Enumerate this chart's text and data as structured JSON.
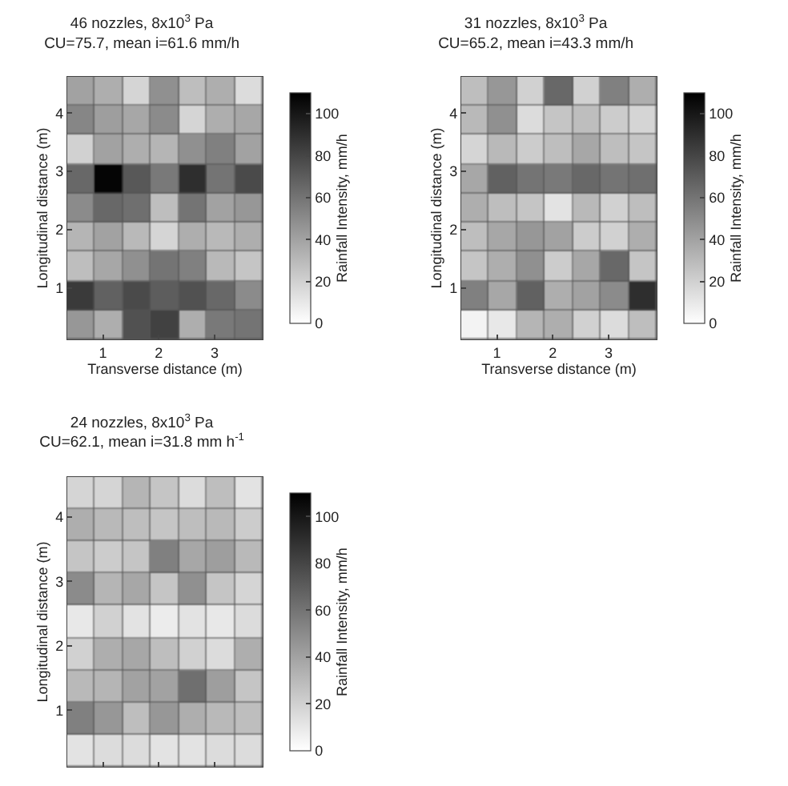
{
  "chart_data": [
    {
      "type": "heatmap",
      "title": "46 nozzles, 8x10$^{3}$ Pa",
      "subtitle": "CU=75.7, mean i=61.6 mm/h",
      "xlabel": "Transverse distance (m)",
      "ylabel": "Longitudinal distance (m)",
      "clabel": "Rainfall Intensity, mm/h",
      "x": [
        0.61,
        1.11,
        1.61,
        2.11,
        2.61,
        3.11,
        3.61
      ],
      "xlim": [
        0.36,
        3.86
      ],
      "ylim": [
        0.12,
        4.62
      ],
      "xticks": [
        1,
        2,
        3
      ],
      "yticks": [
        1,
        2,
        3,
        4
      ],
      "clim": [
        0,
        110
      ],
      "cticks": [
        0,
        20,
        40,
        60,
        80,
        100
      ],
      "cells": [
        [
          40,
          35,
          18,
          48,
          28,
          35,
          15
        ],
        [
          52,
          42,
          38,
          50,
          18,
          35,
          38
        ],
        [
          20,
          40,
          35,
          32,
          48,
          55,
          40
        ],
        [
          65,
          108,
          72,
          58,
          90,
          60,
          78
        ],
        [
          50,
          65,
          62,
          28,
          60,
          40,
          45
        ],
        [
          32,
          40,
          30,
          18,
          35,
          30,
          35
        ],
        [
          28,
          38,
          48,
          60,
          55,
          30,
          25
        ],
        [
          85,
          68,
          78,
          70,
          75,
          65,
          50
        ],
        [
          45,
          35,
          75,
          82,
          35,
          58,
          60
        ]
      ]
    },
    {
      "type": "heatmap",
      "title": "31 nozzles, 8x10$^{3}$ Pa",
      "subtitle": "CU=65.2, mean i=43.3 mm/h",
      "xlabel": "Transverse distance (m)",
      "ylabel": "Longitudinal distance (m)",
      "clabel": "Rainfall Intensity, mm/h",
      "x": [
        0.61,
        1.11,
        1.61,
        2.11,
        2.61,
        3.11,
        3.61
      ],
      "xlim": [
        0.36,
        3.86
      ],
      "ylim": [
        0.12,
        4.62
      ],
      "xticks": [
        1,
        2,
        3
      ],
      "yticks": [
        1,
        2,
        3,
        4
      ],
      "clim": [
        0,
        110
      ],
      "cticks": [
        0,
        20,
        40,
        60,
        80,
        100
      ],
      "cells": [
        [
          28,
          45,
          20,
          65,
          20,
          55,
          35
        ],
        [
          30,
          48,
          15,
          25,
          28,
          22,
          18
        ],
        [
          18,
          30,
          22,
          28,
          38,
          28,
          25
        ],
        [
          38,
          68,
          60,
          58,
          65,
          60,
          62
        ],
        [
          35,
          28,
          25,
          12,
          30,
          20,
          28
        ],
        [
          28,
          38,
          45,
          40,
          22,
          20,
          35
        ],
        [
          25,
          35,
          48,
          22,
          38,
          65,
          25
        ],
        [
          55,
          38,
          68,
          35,
          40,
          50,
          90
        ],
        [
          5,
          10,
          32,
          35,
          20,
          15,
          28
        ]
      ]
    },
    {
      "type": "heatmap",
      "title": "24 nozzles, 8x10$^{3}$ Pa",
      "subtitle": "CU=62.1, mean i=31.8 mm h$^{-1}$",
      "ylabel": "Longitudinal distance (m)",
      "clabel": "Rainfall Intensity, mm/h",
      "x": [
        0.61,
        1.11,
        1.61,
        2.11,
        2.61,
        3.11,
        3.61
      ],
      "xlim": [
        0.36,
        3.86
      ],
      "ylim": [
        0.12,
        4.62
      ],
      "xticks": [
        1,
        2,
        3
      ],
      "yticks": [
        1,
        2,
        3,
        4
      ],
      "clim": [
        0,
        110
      ],
      "cticks": [
        0,
        20,
        40,
        60,
        80,
        100
      ],
      "tick_labels": "y",
      "cells": [
        [
          18,
          18,
          32,
          25,
          15,
          28,
          12
        ],
        [
          35,
          30,
          28,
          25,
          28,
          30,
          22
        ],
        [
          25,
          22,
          25,
          55,
          38,
          42,
          30
        ],
        [
          50,
          32,
          38,
          25,
          48,
          25,
          18
        ],
        [
          10,
          20,
          12,
          8,
          12,
          10,
          15
        ],
        [
          20,
          35,
          38,
          28,
          20,
          15,
          35
        ],
        [
          30,
          32,
          40,
          40,
          62,
          42,
          25
        ],
        [
          55,
          45,
          28,
          45,
          35,
          30,
          28
        ],
        [
          12,
          15,
          15,
          12,
          12,
          15,
          15
        ]
      ]
    }
  ]
}
